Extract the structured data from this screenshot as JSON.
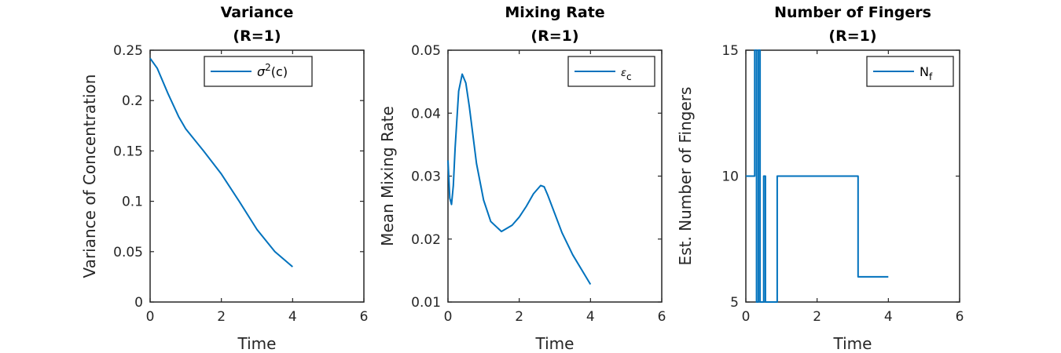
{
  "chart_data": [
    {
      "type": "line",
      "title": "Variance",
      "subtitle": "(R=1)",
      "xlabel": "Time",
      "ylabel": "Variance of Concentration",
      "xlim": [
        0,
        6
      ],
      "ylim": [
        0,
        0.25
      ],
      "xticks": [
        0,
        2,
        4,
        6
      ],
      "xtick_labels": [
        "0",
        "2",
        "4",
        "6"
      ],
      "yticks": [
        0,
        0.05,
        0.1,
        0.15,
        0.2,
        0.25
      ],
      "ytick_labels": [
        "0",
        "0.05",
        "0.1",
        "0.15",
        "0.2",
        "0.25"
      ],
      "grid": false,
      "legend_position": "top-right",
      "step": false,
      "series": [
        {
          "name": "σ²(c)",
          "color": "#0072BD",
          "x": [
            0,
            0.2,
            0.5,
            0.8,
            1.0,
            1.5,
            2.0,
            2.5,
            3.0,
            3.5,
            4.0
          ],
          "y": [
            0.242,
            0.232,
            0.207,
            0.184,
            0.172,
            0.15,
            0.127,
            0.1,
            0.072,
            0.05,
            0.035
          ]
        }
      ]
    },
    {
      "type": "line",
      "title": "Mixing Rate",
      "subtitle": "(R=1)",
      "xlabel": "Time",
      "ylabel": "Mean Mixing Rate",
      "xlim": [
        0,
        6
      ],
      "ylim": [
        0.01,
        0.05
      ],
      "xticks": [
        0,
        2,
        4,
        6
      ],
      "xtick_labels": [
        "0",
        "2",
        "4",
        "6"
      ],
      "yticks": [
        0.01,
        0.02,
        0.03,
        0.04,
        0.05
      ],
      "ytick_labels": [
        "0.01",
        "0.02",
        "0.03",
        "0.04",
        "0.05"
      ],
      "grid": false,
      "legend_position": "top-right",
      "step": false,
      "series": [
        {
          "name": "ε_c",
          "color": "#0072BD",
          "x": [
            0,
            0.05,
            0.1,
            0.15,
            0.2,
            0.3,
            0.4,
            0.5,
            0.6,
            0.8,
            1.0,
            1.2,
            1.5,
            1.8,
            2.0,
            2.2,
            2.4,
            2.6,
            2.7,
            2.8,
            3.0,
            3.2,
            3.5,
            4.0
          ],
          "y": [
            0.0325,
            0.0265,
            0.0255,
            0.0285,
            0.0345,
            0.0435,
            0.0462,
            0.0448,
            0.041,
            0.032,
            0.0262,
            0.0228,
            0.0212,
            0.0222,
            0.0235,
            0.0252,
            0.0272,
            0.0285,
            0.0283,
            0.027,
            0.024,
            0.021,
            0.0175,
            0.0128
          ]
        }
      ]
    },
    {
      "type": "line",
      "title": "Number of Fingers",
      "subtitle": "(R=1)",
      "xlabel": "Time",
      "ylabel": "Est. Number of Fingers",
      "xlim": [
        0,
        6
      ],
      "ylim": [
        5,
        15
      ],
      "xticks": [
        0,
        2,
        4,
        6
      ],
      "xtick_labels": [
        "0",
        "2",
        "4",
        "6"
      ],
      "yticks": [
        5,
        10,
        15
      ],
      "ytick_labels": [
        "5",
        "10",
        "15"
      ],
      "grid": false,
      "legend_position": "top-right",
      "step": true,
      "series": [
        {
          "name": "N_f",
          "color": "#0072BD",
          "x": [
            0,
            0.25,
            0.25,
            0.3,
            0.3,
            0.35,
            0.35,
            0.4,
            0.4,
            0.5,
            0.5,
            0.55,
            0.55,
            0.88,
            0.88,
            3.15,
            3.15,
            4.0
          ],
          "y": [
            10,
            10,
            15,
            15,
            5,
            5,
            15,
            15,
            5,
            5,
            10,
            10,
            5,
            5,
            10,
            10,
            6,
            6
          ]
        }
      ]
    }
  ]
}
